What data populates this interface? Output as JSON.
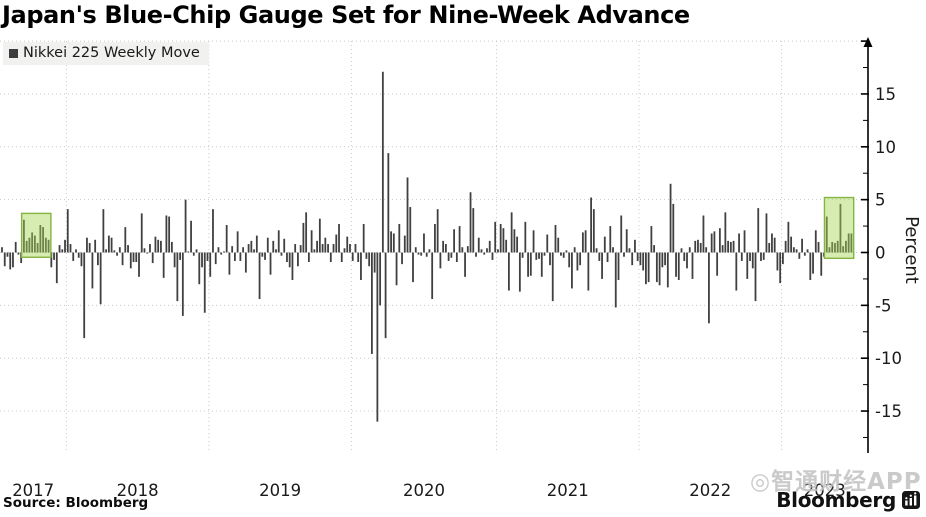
{
  "title": "Japan's Blue-Chip Gauge Set for Nine-Week Advance",
  "legend": {
    "label": "Nikkei 225 Weekly Move",
    "swatch_color": "#3d3d3d"
  },
  "source_label": "Source: Bloomberg",
  "branding": {
    "logo_text": "Bloomberg",
    "logo_icon": "bloomberg-terminal-icon"
  },
  "watermark_text": "◎智通财经APP",
  "chart_data": {
    "type": "bar",
    "title": "Japan's Blue-Chip Gauge Set for Nine-Week Advance",
    "series_name": "Nikkei 225 Weekly Move",
    "frequency": "weekly",
    "approx_start": "2017-07",
    "approx_end": "2023-06",
    "xlabel": "",
    "ylabel": "Percent",
    "x_tick_labels": [
      "2017",
      "2018",
      "2019",
      "2020",
      "2021",
      "2022",
      "2023"
    ],
    "y_tick_labels": [
      15,
      10,
      5,
      0,
      -5,
      -10,
      -15
    ],
    "y_minor_ticks": [
      17.5,
      12.5,
      7.5,
      2.5,
      -2.5,
      -7.5,
      -12.5,
      -17.5
    ],
    "ylim": [
      -17.5,
      20
    ],
    "grid": true,
    "legend_position": "top-left",
    "bar_color": "#404040",
    "highlight_fill": "#a6d450",
    "highlight_stroke": "#84b441",
    "year_start_indices": [
      24,
      76,
      128,
      181,
      233,
      285
    ],
    "highlights": [
      {
        "label": "2017 nine-week advance",
        "start_index": 8,
        "end_index": 17,
        "y_top_pct": 3.7,
        "y_bottom_pct": -0.45
      },
      {
        "label": "2023 nine-week advance",
        "start_index": 301,
        "end_index": 310,
        "y_top_pct": 5.2,
        "y_bottom_pct": -0.55
      }
    ],
    "values": [
      0.5,
      -1.3,
      -0.4,
      -1.6,
      -1.4,
      1.0,
      -0.2,
      -1.0,
      3.1,
      1.1,
      1.4,
      1.9,
      1.6,
      0.9,
      2.6,
      2.4,
      1.4,
      1.2,
      -1.4,
      -0.7,
      -2.9,
      0.7,
      0.3,
      1.2,
      4.1,
      0.8,
      -0.8,
      0.3,
      -0.5,
      -1.3,
      -8.1,
      1.4,
      0.9,
      -3.4,
      1.2,
      -1.2,
      -4.9,
      4.1,
      0.3,
      1.6,
      1.4,
      0.2,
      -0.3,
      0.5,
      -1.2,
      2.4,
      0.7,
      -1.5,
      -0.9,
      -0.9,
      -2.3,
      3.7,
      0.4,
      -0.1,
      0.8,
      -1.0,
      1.5,
      1.2,
      1.1,
      -2.4,
      3.5,
      3.4,
      1.0,
      -1.4,
      -4.6,
      -0.7,
      -6.0,
      5.0,
      0.1,
      3.0,
      -0.3,
      0.3,
      -3.0,
      -1.4,
      -5.7,
      -0.8,
      -2.3,
      4.1,
      -1.1,
      0.5,
      -0.2,
      0.1,
      2.6,
      -2.1,
      0.6,
      -0.8,
      2.0,
      -0.8,
      0.5,
      -1.9,
      0.8,
      1.1,
      0.3,
      1.6,
      -4.4,
      -0.4,
      -0.7,
      1.4,
      -2.1,
      1.1,
      0.3,
      2.1,
      -0.3,
      1.3,
      -0.9,
      -1.4,
      -2.6,
      0.8,
      -1.3,
      0.7,
      2.8,
      3.8,
      -0.9,
      2.1,
      0.3,
      1.1,
      3.2,
      0.8,
      1.4,
      0.8,
      -0.9,
      0.8,
      1.7,
      2.7,
      -0.9,
      0.4,
      1.5,
      0.8,
      -0.8,
      0.8,
      -0.9,
      -2.6,
      2.7,
      -0.6,
      -1.3,
      -9.6,
      -1.9,
      -16.0,
      -5.0,
      17.1,
      -8.1,
      9.4,
      2.0,
      1.8,
      -3.1,
      2.7,
      -1.1,
      1.6,
      7.1,
      4.3,
      -2.8,
      0.5,
      -0.2,
      -0.3,
      1.8,
      -0.4,
      0.3,
      -4.4,
      2.7,
      4.1,
      -1.5,
      1.1,
      0.8,
      -0.8,
      -0.5,
      2.2,
      -0.9,
      2.5,
      0.5,
      -2.3,
      0.6,
      5.7,
      4.2,
      -0.4,
      1.4,
      0.3,
      -0.2,
      0.4,
      1.1,
      -0.7,
      2.9,
      0.3,
      2.7,
      2.3,
      1.2,
      -3.6,
      3.8,
      2.2,
      1.5,
      -3.7,
      -0.5,
      2.9,
      -2.3,
      -2.2,
      2.1,
      -0.7,
      -0.6,
      -2.3,
      -0.3,
      1.7,
      -1.2,
      -4.6,
      2.6,
      1.4,
      -0.3,
      -0.5,
      0.2,
      -1.4,
      -3.4,
      0.5,
      -1.7,
      -1.2,
      1.9,
      2.1,
      -3.6,
      5.2,
      4.1,
      0.4,
      -0.8,
      -2.5,
      1.5,
      -0.9,
      2.5,
      0.5,
      -5.2,
      -2.6,
      3.5,
      -0.4,
      2.2,
      0.4,
      -1.2,
      1.2,
      -0.8,
      -1.2,
      -1.7,
      -3.0,
      -2.8,
      2.5,
      0.7,
      -2.8,
      -3.1,
      -1.4,
      -1.2,
      -3.3,
      6.5,
      4.6,
      -2.3,
      -2.6,
      0.4,
      -0.8,
      -1.5,
      0.5,
      -2.5,
      1.1,
      1.2,
      0.9,
      3.5,
      0.5,
      -6.7,
      1.8,
      2.0,
      -2.2,
      2.3,
      0.7,
      3.8,
      1.1,
      1.0,
      1.1,
      -3.6,
      1.8,
      -0.8,
      2.1,
      -2.5,
      -0.8,
      -1.5,
      -4.6,
      4.2,
      -0.8,
      -0.7,
      3.7,
      0.9,
      1.8,
      1.4,
      -1.7,
      -2.9,
      -1.1,
      1.1,
      2.9,
      1.5,
      0.5,
      0.3,
      -0.6,
      1.3,
      -0.3,
      0.3,
      -2.6,
      -2.0,
      2.1,
      1.0,
      -2.2,
      -0.4,
      3.4,
      0.5,
      1.0,
      0.9,
      1.1,
      4.6,
      0.6,
      1.1,
      1.8,
      1.8
    ]
  }
}
